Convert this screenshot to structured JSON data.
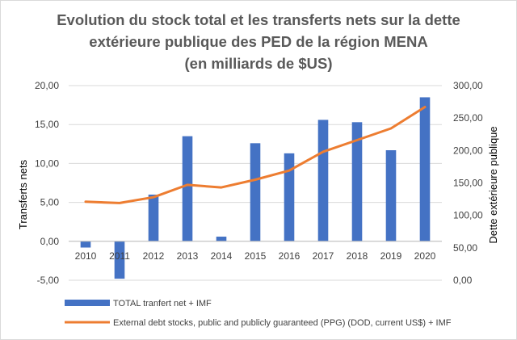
{
  "chart_data": {
    "type": "bar+line",
    "title": [
      "Evolution du stock total et les transferts nets sur la dette",
      "extérieure publique des PED de la région MENA",
      "(en milliards de $US)"
    ],
    "categories": [
      "2010",
      "2011",
      "2012",
      "2013",
      "2014",
      "2015",
      "2016",
      "2017",
      "2018",
      "2019",
      "2020"
    ],
    "ylabel": "Transferts nets",
    "y2label": "Dette extérieure publique",
    "ylim": [
      -5,
      20
    ],
    "y2lim": [
      0,
      300
    ],
    "yticks": [
      "-5,00",
      "0,00",
      "5,00",
      "10,00",
      "15,00",
      "20,00"
    ],
    "y2ticks": [
      "0,00",
      "50,00",
      "100,00",
      "150,00",
      "200,00",
      "250,00",
      "300,00"
    ],
    "grid": true,
    "legend_position": "bottom",
    "series": [
      {
        "name": "TOTAL tranfert net + IMF",
        "type": "bar",
        "axis": "left",
        "color": "#4472C4",
        "values": [
          -0.8,
          -4.8,
          6.0,
          13.5,
          0.6,
          12.6,
          11.3,
          15.6,
          15.3,
          11.7,
          18.5
        ]
      },
      {
        "name": "External debt stocks, public and publicly guaranteed (PPG) (DOD, current US$) + IMF",
        "type": "line",
        "axis": "right",
        "color": "#ED7D31",
        "values": [
          121,
          119,
          128,
          147,
          143,
          155,
          169,
          198,
          216,
          234,
          267
        ]
      }
    ]
  }
}
